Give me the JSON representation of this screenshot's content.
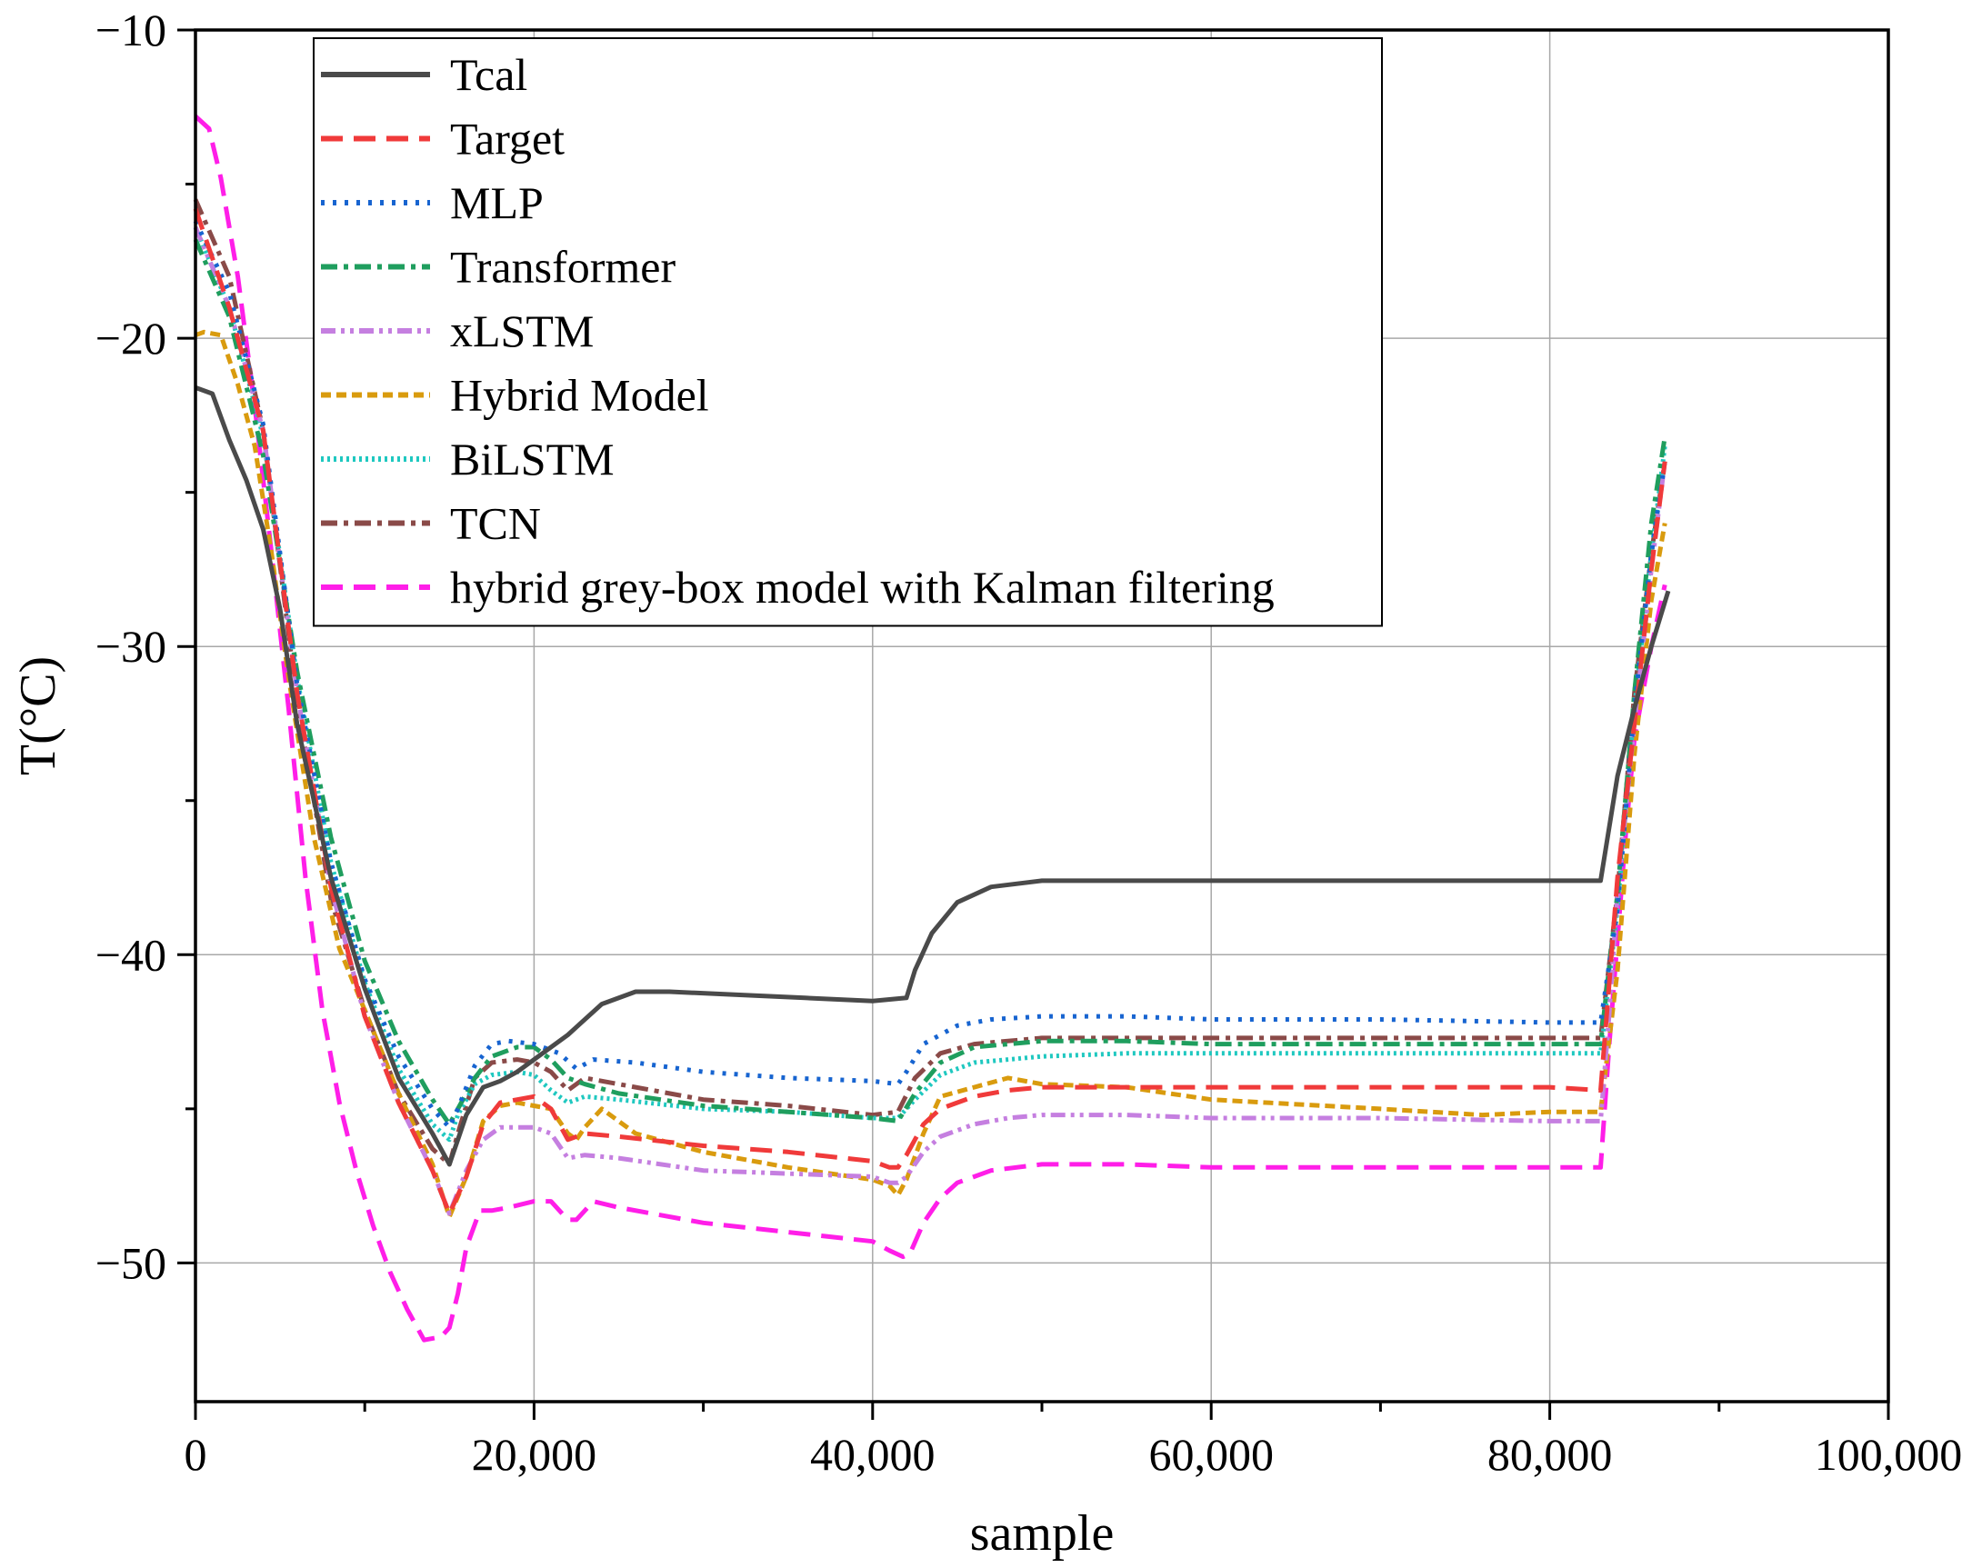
{
  "chart_data": {
    "type": "line",
    "title": "",
    "xlabel": "sample",
    "ylabel": "T(°C)",
    "xlim": [
      0,
      100000
    ],
    "ylim": [
      -54.5,
      -10
    ],
    "grid": true,
    "legend_position": "top-left",
    "x_ticks": [
      0,
      20000,
      40000,
      60000,
      80000,
      100000
    ],
    "x_tick_labels": [
      "0",
      "20,000",
      "40,000",
      "60,000",
      "80,000",
      "100,000"
    ],
    "y_ticks": [
      -10,
      -20,
      -30,
      -40,
      -50
    ],
    "y_tick_labels": [
      "−10",
      "−20",
      "−30",
      "−40",
      "−50"
    ],
    "series": [
      {
        "name": "Tcal",
        "color": "#4a4a4a",
        "dash": "solid",
        "x": [
          0,
          1000,
          2000,
          3000,
          4000,
          5000,
          6000,
          8000,
          10000,
          12000,
          14000,
          15000,
          16000,
          17000,
          18000,
          19000,
          20000,
          22000,
          24000,
          26000,
          28000,
          32000,
          36000,
          40000,
          42000,
          42500,
          43500,
          45000,
          47000,
          50000,
          55000,
          60000,
          70000,
          80000,
          83000,
          84000,
          85000,
          86000,
          87000
        ],
        "y": [
          -21.6,
          -21.8,
          -23.3,
          -24.6,
          -26.2,
          -28.8,
          -32.5,
          -37.5,
          -41.1,
          -44.0,
          -45.8,
          -46.8,
          -45.2,
          -44.3,
          -44.1,
          -43.8,
          -43.4,
          -42.6,
          -41.6,
          -41.2,
          -41.2,
          -41.3,
          -41.4,
          -41.5,
          -41.4,
          -40.5,
          -39.3,
          -38.3,
          -37.8,
          -37.6,
          -37.6,
          -37.6,
          -37.6,
          -37.6,
          -37.6,
          -34.2,
          -32.0,
          -30.0,
          -28.2
        ]
      },
      {
        "name": "Target",
        "color": "#f03a3a",
        "dash": "long-dash",
        "x": [
          0,
          2000,
          4000,
          6000,
          8000,
          10000,
          12000,
          14000,
          15000,
          16000,
          17000,
          18000,
          20000,
          21000,
          22000,
          23000,
          25000,
          30000,
          35000,
          40000,
          41000,
          41500,
          42000,
          43000,
          44000,
          46000,
          48000,
          50000,
          55000,
          60000,
          70000,
          80000,
          83000,
          83500,
          84000,
          85000,
          86000,
          86800
        ],
        "y": [
          -15.8,
          -19.0,
          -23.0,
          -31.5,
          -37.8,
          -42.0,
          -44.8,
          -47.0,
          -48.4,
          -47.2,
          -45.5,
          -44.8,
          -44.6,
          -45.0,
          -46.0,
          -45.8,
          -45.9,
          -46.2,
          -46.4,
          -46.7,
          -46.9,
          -46.9,
          -46.5,
          -45.5,
          -45.0,
          -44.6,
          -44.4,
          -44.3,
          -44.3,
          -44.3,
          -44.3,
          -44.3,
          -44.4,
          -41.0,
          -37.5,
          -32.5,
          -27.5,
          -24.0
        ]
      },
      {
        "name": "MLP",
        "color": "#1764d0",
        "dash": "dot",
        "x": [
          0,
          2000,
          4000,
          6000,
          8000,
          10000,
          12000,
          14000,
          15000,
          15500,
          16500,
          17500,
          18500,
          20000,
          21500,
          22500,
          23500,
          26000,
          30000,
          35000,
          40000,
          41500,
          42000,
          43000,
          45000,
          47000,
          50000,
          55000,
          60000,
          70000,
          80000,
          83000,
          84000,
          85000,
          86000,
          86800
        ],
        "y": [
          -16.2,
          -18.5,
          -22.8,
          -31.2,
          -37.0,
          -40.8,
          -43.3,
          -45.0,
          -45.6,
          -45.0,
          -43.6,
          -42.9,
          -42.8,
          -42.9,
          -43.2,
          -43.7,
          -43.4,
          -43.5,
          -43.8,
          -44.0,
          -44.1,
          -44.2,
          -43.8,
          -42.9,
          -42.3,
          -42.1,
          -42.0,
          -42.0,
          -42.1,
          -42.1,
          -42.2,
          -42.2,
          -38.5,
          -32.0,
          -27.0,
          -24.0
        ]
      },
      {
        "name": "Transformer",
        "color": "#1f9e5e",
        "dash": "dash-dot",
        "x": [
          0,
          2000,
          4000,
          6000,
          8000,
          10000,
          12000,
          14000,
          15000,
          15500,
          16500,
          17500,
          19000,
          20000,
          21000,
          22000,
          23000,
          25000,
          30000,
          35000,
          40000,
          41500,
          42500,
          44000,
          46000,
          50000,
          55000,
          60000,
          70000,
          80000,
          83000,
          84000,
          85000,
          86000,
          86800
        ],
        "y": [
          -16.8,
          -19.3,
          -23.8,
          -30.8,
          -36.2,
          -40.2,
          -42.8,
          -44.7,
          -45.5,
          -45.0,
          -44.0,
          -43.3,
          -43.0,
          -43.0,
          -43.4,
          -44.0,
          -44.2,
          -44.5,
          -44.9,
          -45.1,
          -45.3,
          -45.4,
          -44.5,
          -43.5,
          -43.0,
          -42.8,
          -42.8,
          -42.9,
          -42.9,
          -42.9,
          -42.9,
          -38.0,
          -31.5,
          -26.0,
          -23.2
        ]
      },
      {
        "name": "xLSTM",
        "color": "#c57fe0",
        "dash": "dash-dot-dot",
        "x": [
          0,
          2000,
          4000,
          6000,
          8000,
          10000,
          12000,
          14000,
          15000,
          16000,
          17000,
          18000,
          20000,
          21000,
          22000,
          23000,
          25000,
          30000,
          35000,
          40000,
          41000,
          41500,
          42000,
          43000,
          44000,
          46000,
          48000,
          50000,
          55000,
          60000,
          70000,
          80000,
          83000,
          83500,
          84000,
          85000,
          86000,
          86800
        ],
        "y": [
          -16.4,
          -19.0,
          -23.0,
          -31.5,
          -37.8,
          -42.0,
          -44.8,
          -47.0,
          -48.4,
          -47.0,
          -46.0,
          -45.6,
          -45.6,
          -45.8,
          -46.6,
          -46.5,
          -46.6,
          -47.0,
          -47.1,
          -47.2,
          -47.4,
          -47.4,
          -47.2,
          -46.4,
          -45.9,
          -45.5,
          -45.3,
          -45.2,
          -45.2,
          -45.3,
          -45.3,
          -45.4,
          -45.4,
          -42.0,
          -38.0,
          -32.5,
          -27.5,
          -24.0
        ]
      },
      {
        "name": "Hybrid Model",
        "color": "#d99b0e",
        "dash": "short-dash",
        "x": [
          0,
          500,
          1500,
          2500,
          3500,
          4500,
          5500,
          7000,
          8500,
          10000,
          12000,
          14000,
          15000,
          16000,
          17000,
          18000,
          19000,
          20000,
          21000,
          22000,
          22500,
          23000,
          24000,
          26000,
          30000,
          35000,
          40000,
          41000,
          41500,
          42000,
          43000,
          44000,
          46000,
          48000,
          50000,
          55000,
          60000,
          70000,
          76000,
          80000,
          83000,
          84000,
          85000,
          86000,
          86800
        ],
        "y": [
          -19.9,
          -19.8,
          -19.9,
          -21.5,
          -23.5,
          -27.0,
          -31.0,
          -36.2,
          -39.8,
          -41.8,
          -44.5,
          -46.8,
          -48.5,
          -47.2,
          -45.4,
          -44.9,
          -44.8,
          -44.9,
          -45.0,
          -45.8,
          -46.0,
          -45.6,
          -45.0,
          -45.8,
          -46.4,
          -46.9,
          -47.3,
          -47.5,
          -47.8,
          -47.3,
          -45.8,
          -44.6,
          -44.3,
          -44.0,
          -44.2,
          -44.3,
          -44.7,
          -45.0,
          -45.2,
          -45.1,
          -45.1,
          -40.5,
          -33.5,
          -28.5,
          -26.0
        ]
      },
      {
        "name": "BiLSTM",
        "color": "#1fc8c0",
        "dash": "dense-dot",
        "x": [
          0,
          2000,
          4000,
          6000,
          8000,
          10000,
          12000,
          14000,
          15000,
          15500,
          16500,
          17500,
          19000,
          20000,
          21000,
          22000,
          23000,
          25000,
          30000,
          35000,
          40000,
          41500,
          42500,
          44000,
          46000,
          50000,
          55000,
          60000,
          70000,
          80000,
          83000,
          84000,
          85000,
          86000,
          86800
        ],
        "y": [
          -16.4,
          -19.0,
          -23.2,
          -31.0,
          -37.0,
          -40.9,
          -43.7,
          -45.5,
          -46.0,
          -45.2,
          -44.2,
          -43.9,
          -43.8,
          -43.9,
          -44.4,
          -44.8,
          -44.6,
          -44.7,
          -45.0,
          -45.1,
          -45.3,
          -45.3,
          -44.7,
          -43.9,
          -43.5,
          -43.3,
          -43.2,
          -43.2,
          -43.2,
          -43.2,
          -43.2,
          -38.5,
          -32.0,
          -27.0,
          -23.5
        ]
      },
      {
        "name": "TCN",
        "color": "#8a4a48",
        "dash": "dash-dot",
        "x": [
          0,
          2000,
          4000,
          6000,
          8000,
          10000,
          12000,
          14000,
          15000,
          15500,
          16500,
          17500,
          19000,
          20000,
          21000,
          22000,
          23000,
          25000,
          30000,
          35000,
          40000,
          41500,
          42500,
          44000,
          46000,
          50000,
          55000,
          60000,
          70000,
          80000,
          83000,
          84000,
          85000,
          86000,
          86800
        ],
        "y": [
          -15.5,
          -18.0,
          -23.0,
          -31.8,
          -38.2,
          -41.8,
          -44.5,
          -46.3,
          -46.8,
          -45.8,
          -44.0,
          -43.5,
          -43.4,
          -43.5,
          -43.8,
          -44.4,
          -44.0,
          -44.2,
          -44.7,
          -44.9,
          -45.2,
          -45.1,
          -44.0,
          -43.2,
          -42.9,
          -42.7,
          -42.7,
          -42.7,
          -42.7,
          -42.7,
          -42.7,
          -38.0,
          -31.5,
          -27.0,
          -24.0
        ]
      },
      {
        "name": "hybrid grey-box model with Kalman filtering",
        "color": "#ff1ee8",
        "dash": "long-dash",
        "x": [
          0,
          800,
          1500,
          2500,
          3500,
          4500,
          5500,
          6500,
          7500,
          8500,
          9500,
          10500,
          11500,
          12500,
          13500,
          14500,
          15000,
          15500,
          16000,
          16800,
          17500,
          18500,
          20000,
          21000,
          22000,
          22500,
          23500,
          25000,
          30000,
          35000,
          40000,
          41000,
          41800,
          42200,
          43000,
          44000,
          45000,
          47000,
          50000,
          55000,
          60000,
          70000,
          76000,
          80000,
          83000,
          83500,
          84000,
          84500,
          85000,
          86000,
          86800
        ],
        "y": [
          -12.8,
          -13.2,
          -14.8,
          -18.0,
          -22.2,
          -27.0,
          -32.0,
          -37.5,
          -41.8,
          -44.8,
          -47.0,
          -48.8,
          -50.3,
          -51.5,
          -52.5,
          -52.4,
          -52.1,
          -51.0,
          -49.5,
          -48.3,
          -48.3,
          -48.2,
          -48.0,
          -48.0,
          -48.6,
          -48.6,
          -48.0,
          -48.2,
          -48.7,
          -49.0,
          -49.3,
          -49.6,
          -49.8,
          -49.7,
          -48.7,
          -47.9,
          -47.4,
          -47.0,
          -46.8,
          -46.8,
          -46.9,
          -46.9,
          -46.9,
          -46.9,
          -46.9,
          -43.0,
          -39.5,
          -36.0,
          -33.0,
          -30.0,
          -28.0
        ]
      }
    ]
  }
}
